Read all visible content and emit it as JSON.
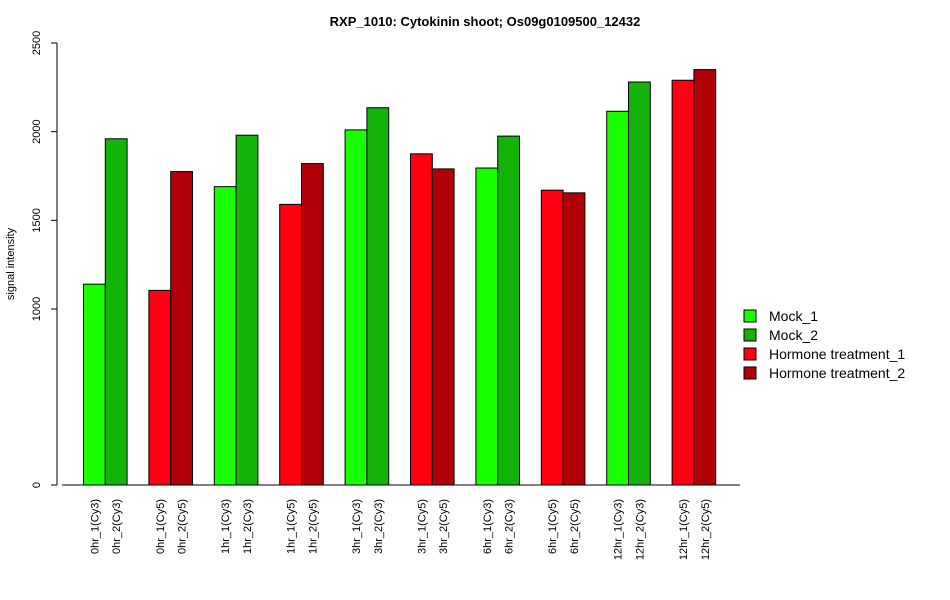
{
  "chart_data": {
    "type": "bar",
    "title": "RXP_1010: Cytokinin shoot; Os09g0109500_12432",
    "xlabel": "",
    "ylabel": "signal intensity",
    "y_scale": "compressed: 0 to 1000 occupies a short segment; 1000–2500 linear",
    "y_ticks": [
      0,
      1000,
      1500,
      2000,
      2500
    ],
    "ylim": [
      0,
      2500
    ],
    "legend_position": "right",
    "categories": [
      "0hr_1(Cy3)",
      "0hr_2(Cy3)",
      "0hr_1(Cy5)",
      "0hr_2(Cy5)",
      "1hr_1(Cy3)",
      "1hr_2(Cy3)",
      "1hr_1(Cy5)",
      "1hr_2(Cy5)",
      "3hr_1(Cy3)",
      "3hr_2(Cy3)",
      "3hr_1(Cy5)",
      "3hr_2(Cy5)",
      "6hr_1(Cy3)",
      "6hr_2(Cy3)",
      "6hr_1(Cy5)",
      "6hr_2(Cy5)",
      "12hr_1(Cy3)",
      "12hr_2(Cy3)",
      "12hr_1(Cy5)",
      "12hr_2(Cy5)"
    ],
    "values": [
      1140,
      1960,
      1105,
      1775,
      1690,
      1980,
      1590,
      1820,
      2010,
      2135,
      1875,
      1790,
      1795,
      1975,
      1670,
      1655,
      2115,
      2280,
      2290,
      2350
    ],
    "series_index": [
      0,
      1,
      2,
      3,
      0,
      1,
      2,
      3,
      0,
      1,
      2,
      3,
      0,
      1,
      2,
      3,
      0,
      1,
      2,
      3
    ],
    "series": [
      {
        "name": "Mock_1",
        "color": "#1aff00"
      },
      {
        "name": "Mock_2",
        "color": "#14b30a"
      },
      {
        "name": "Hormone treatment_1",
        "color": "#ff0010"
      },
      {
        "name": "Hormone treatment_2",
        "color": "#b00008"
      }
    ]
  }
}
